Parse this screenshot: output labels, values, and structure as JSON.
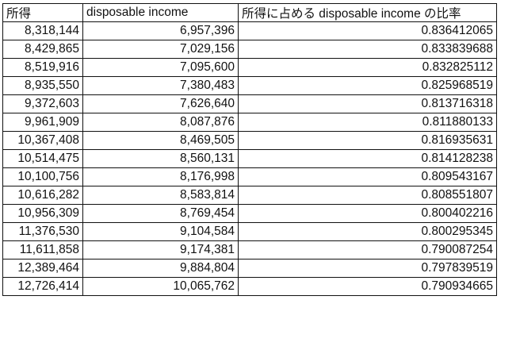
{
  "table": {
    "headers": [
      "所得",
      "disposable income",
      "所得に占める disposable income の比率"
    ],
    "rows": [
      [
        "8,318,144",
        "6,957,396",
        "0.836412065"
      ],
      [
        "8,429,865",
        "7,029,156",
        "0.833839688"
      ],
      [
        "8,519,916",
        "7,095,600",
        "0.832825112"
      ],
      [
        "8,935,550",
        "7,380,483",
        "0.825968519"
      ],
      [
        "9,372,603",
        "7,626,640",
        "0.813716318"
      ],
      [
        "9,961,909",
        "8,087,876",
        "0.811880133"
      ],
      [
        "10,367,408",
        "8,469,505",
        "0.816935631"
      ],
      [
        "10,514,475",
        "8,560,131",
        "0.814128238"
      ],
      [
        "10,100,756",
        "8,176,998",
        "0.809543167"
      ],
      [
        "10,616,282",
        "8,583,814",
        "0.808551807"
      ],
      [
        "10,956,309",
        "8,769,454",
        "0.800402216"
      ],
      [
        "11,376,530",
        "9,104,584",
        "0.800295345"
      ],
      [
        "11,611,858",
        "9,174,381",
        "0.790087254"
      ],
      [
        "12,389,464",
        "9,884,804",
        "0.797839519"
      ],
      [
        "12,726,414",
        "10,065,762",
        "0.790934665"
      ]
    ]
  }
}
